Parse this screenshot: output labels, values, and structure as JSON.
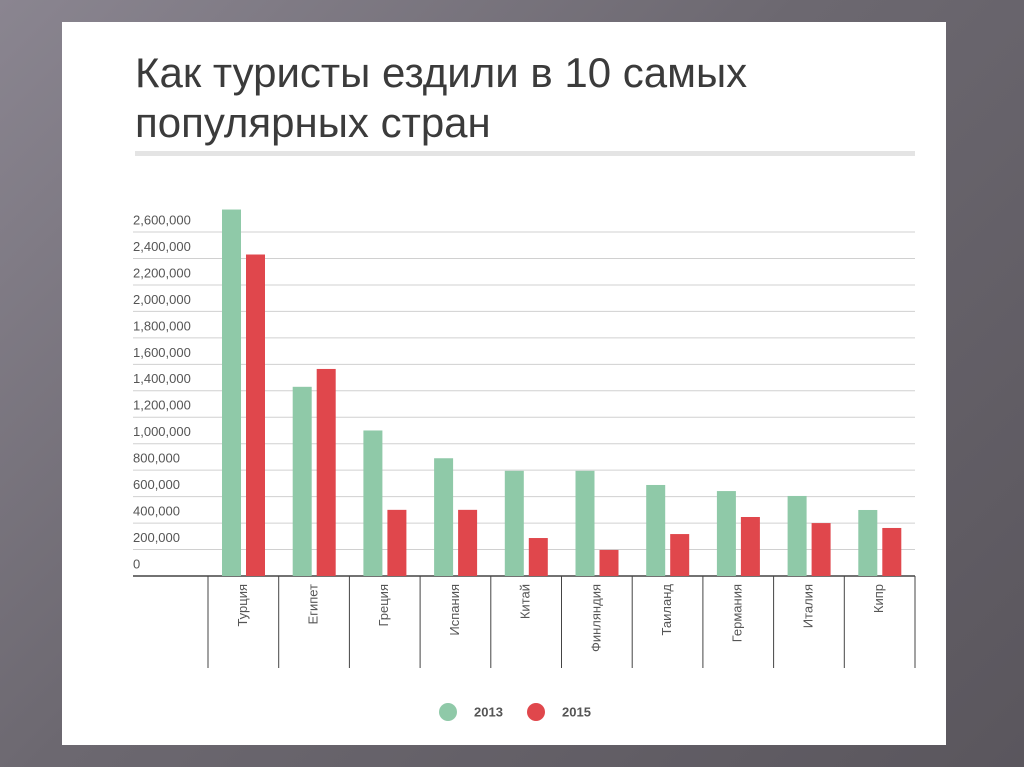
{
  "chart_data": {
    "type": "bar",
    "title": "Как туристы ездили в 10 самых популярных стран",
    "categories": [
      "Турция",
      "Египет",
      "Греция",
      "Испания",
      "Китай",
      "Финляндия",
      "Таиланд",
      "Германия",
      "Италия",
      "Кипр"
    ],
    "series": [
      {
        "name": "2013",
        "color": "#8fc9a8",
        "values": [
          2770000,
          1430000,
          1100000,
          890000,
          795000,
          795000,
          688000,
          642000,
          605000,
          499000
        ]
      },
      {
        "name": "2015",
        "color": "#e0474c",
        "values": [
          2430000,
          1565000,
          500000,
          500000,
          287000,
          197000,
          317000,
          446000,
          400000,
          363000
        ]
      }
    ],
    "ylim": [
      0,
      2800000
    ],
    "yticks": [
      0,
      {
        "value": 200000,
        "label": "200,000"
      },
      {
        "value": 400000,
        "label": "400,000"
      },
      {
        "value": 600000,
        "label": "600,000"
      },
      {
        "value": 800000,
        "label": "800,000"
      },
      {
        "value": 1000000,
        "label": "1,000,000"
      },
      {
        "value": 1200000,
        "label": "1,200,000"
      },
      {
        "value": 1400000,
        "label": "1,400,000"
      },
      {
        "value": 1600000,
        "label": "1,600,000"
      },
      {
        "value": 1800000,
        "label": "1,800,000"
      },
      {
        "value": 2000000,
        "label": "2,000,000"
      },
      {
        "value": 2200000,
        "label": "2,200,000"
      },
      {
        "value": 2400000,
        "label": "2,400,000"
      },
      {
        "value": 2600000,
        "label": "2,600,000"
      }
    ],
    "grid": true
  }
}
